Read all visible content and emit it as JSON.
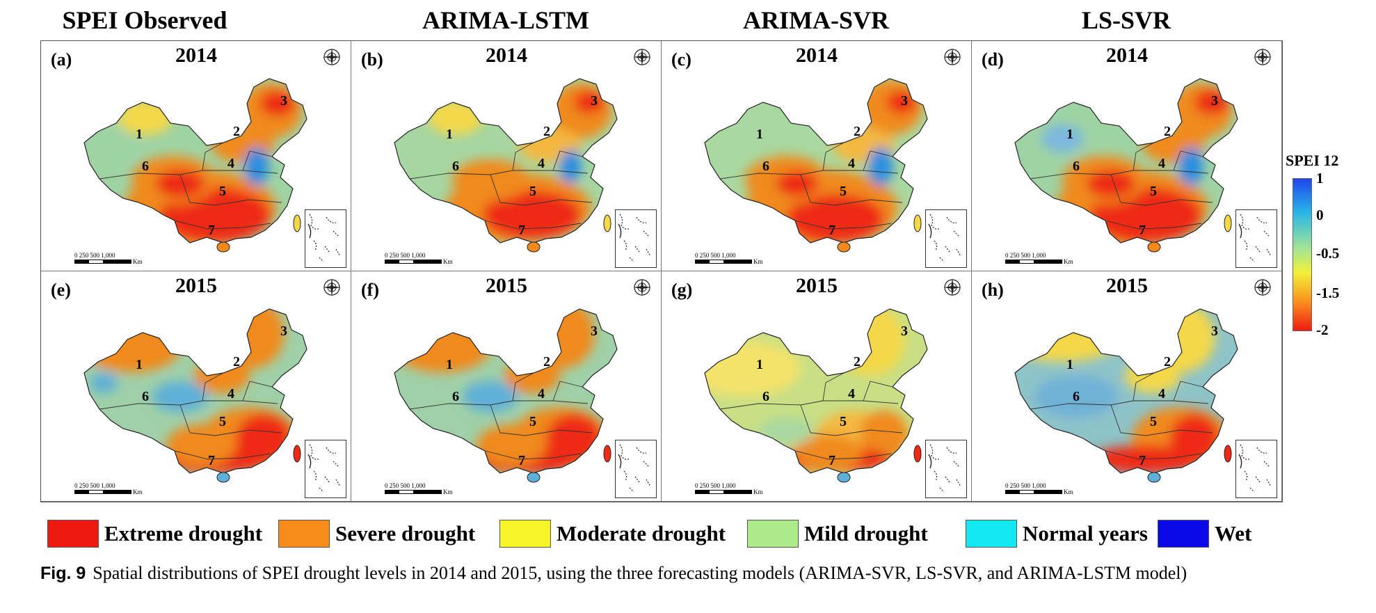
{
  "columns": [
    "SPEI Observed",
    "ARIMA-LSTM",
    "ARIMA-SVR",
    "LS-SVR"
  ],
  "panels": [
    {
      "label": "(a)",
      "year": "2014",
      "scheme": "obs14"
    },
    {
      "label": "(b)",
      "year": "2014",
      "scheme": "lstm14"
    },
    {
      "label": "(c)",
      "year": "2014",
      "scheme": "svr14"
    },
    {
      "label": "(d)",
      "year": "2014",
      "scheme": "lssvr14"
    },
    {
      "label": "(e)",
      "year": "2015",
      "scheme": "obs15"
    },
    {
      "label": "(f)",
      "year": "2015",
      "scheme": "lstm15"
    },
    {
      "label": "(g)",
      "year": "2015",
      "scheme": "svr15"
    },
    {
      "label": "(h)",
      "year": "2015",
      "scheme": "lssvr15"
    }
  ],
  "region_numbers": [
    "1",
    "2",
    "3",
    "4",
    "5",
    "6",
    "7"
  ],
  "scale_bar": {
    "ticks": "0  250 500     1,000",
    "unit": "Km"
  },
  "colorbar": {
    "title": "SPEI 12",
    "ticks": [
      "1",
      "0",
      "-0.5",
      "-1.5",
      "-2"
    ]
  },
  "legend": [
    {
      "label": "Extreme drought",
      "color": "#ee1a12"
    },
    {
      "label": "Severe drought",
      "color": "#f98b1c"
    },
    {
      "label": "Moderate drought",
      "color": "#f7f428"
    },
    {
      "label": "Mild drought",
      "color": "#adea8c"
    },
    {
      "label": "Normal years",
      "color": "#14e8f0"
    },
    {
      "label": "Wet",
      "color": "#0a0ae8"
    }
  ],
  "caption": {
    "fig": "Fig. 9",
    "text": "Spatial distributions of SPEI drought levels in 2014 and 2015, using the three forecasting models (ARIMA-SVR, LS-SVR, and ARIMA-LSTM model)"
  }
}
